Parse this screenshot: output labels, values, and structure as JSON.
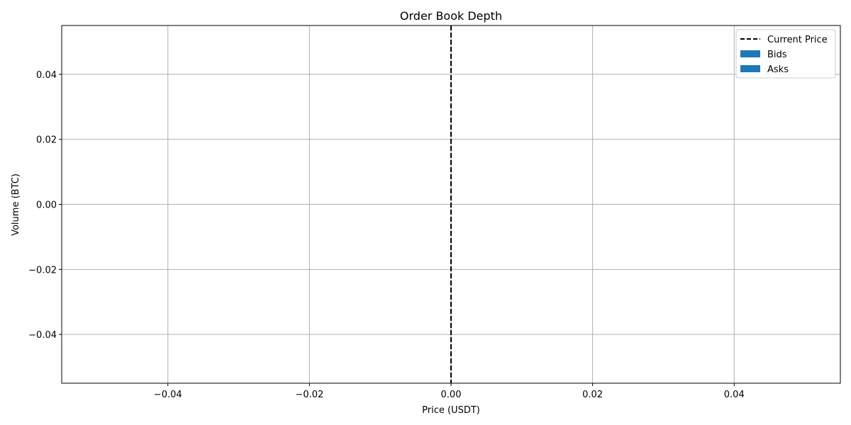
{
  "chart_data": {
    "type": "bar",
    "title": "Order Book Depth",
    "xlabel": "Price (USDT)",
    "ylabel": "Volume (BTC)",
    "xlim": [
      -0.055,
      0.055
    ],
    "ylim": [
      -0.055,
      0.055
    ],
    "x_ticks": [
      -0.04,
      -0.02,
      0.0,
      0.02,
      0.04
    ],
    "x_tick_labels": [
      "−0.04",
      "−0.02",
      "0.00",
      "0.02",
      "0.04"
    ],
    "y_ticks": [
      -0.04,
      -0.02,
      0.0,
      0.02,
      0.04
    ],
    "y_tick_labels": [
      "−0.04",
      "−0.02",
      "0.00",
      "0.02",
      "0.04"
    ],
    "grid": true,
    "legend_position": "top-right",
    "current_price": {
      "name": "Current Price",
      "x": 0.0,
      "color": "#000000",
      "style": "dashed"
    },
    "series": [
      {
        "name": "Bids",
        "color": "#1f77b4",
        "x": [],
        "values": []
      },
      {
        "name": "Asks",
        "color": "#1f77b4",
        "x": [],
        "values": []
      }
    ]
  }
}
